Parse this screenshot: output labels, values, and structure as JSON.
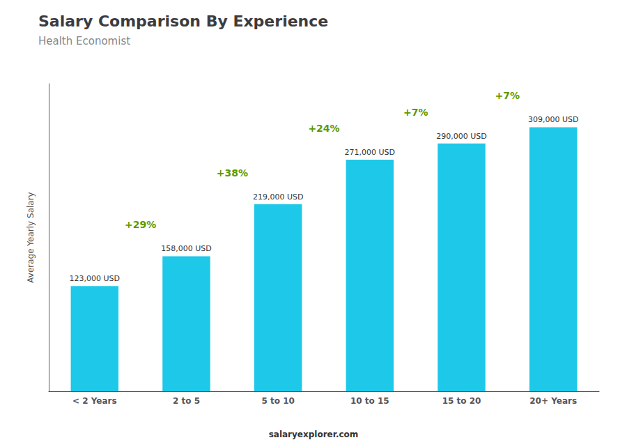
{
  "chart_data": {
    "type": "bar",
    "title": "Salary Comparison By Experience",
    "subtitle": "Health Economist",
    "ylabel": "Average Yearly Salary",
    "categories": [
      "< 2 Years",
      "2 to 5",
      "5 to 10",
      "10 to 15",
      "15 to 20",
      "20+ Years"
    ],
    "values": [
      123000,
      158000,
      219000,
      271000,
      290000,
      309000
    ],
    "value_labels": [
      "123,000 USD",
      "158,000 USD",
      "219,000 USD",
      "271,000 USD",
      "290,000 USD",
      "309,000 USD"
    ],
    "data_labels": true,
    "color": "#1EC8E8",
    "annotations": [
      "+29%",
      "+38%",
      "+24%",
      "+7%",
      "+7%"
    ],
    "source": "salaryexplorer.com",
    "ylim": [
      0,
      360000
    ],
    "tick_labels": "x",
    "grid": false
  }
}
